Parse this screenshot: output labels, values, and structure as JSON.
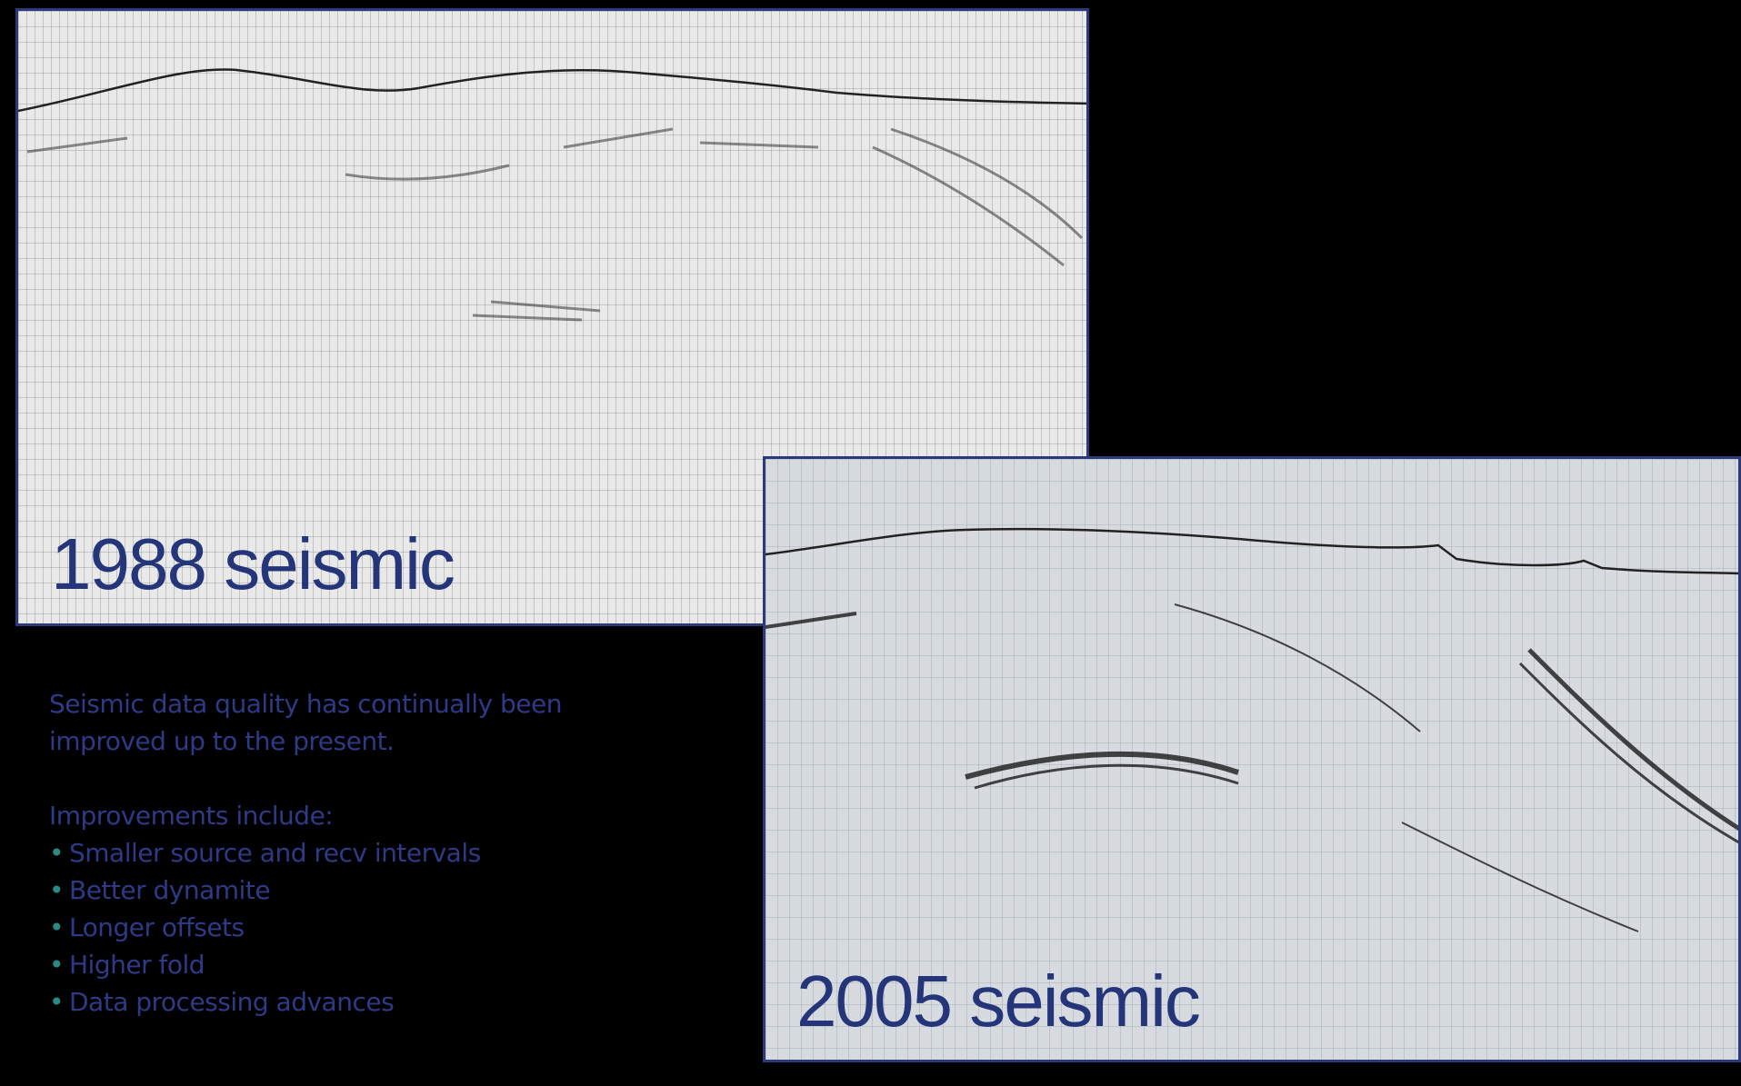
{
  "panels": [
    {
      "label": "1988 seismic"
    },
    {
      "label": "2005 seismic"
    }
  ],
  "text": {
    "paragraph": "Seismic data quality has continually been improved up to the present.",
    "list_heading": "Improvements include:",
    "bullets": [
      "Smaller source and recv intervals",
      "Better dynamite",
      "Longer offsets",
      "Higher fold",
      "Data processing advances"
    ]
  }
}
